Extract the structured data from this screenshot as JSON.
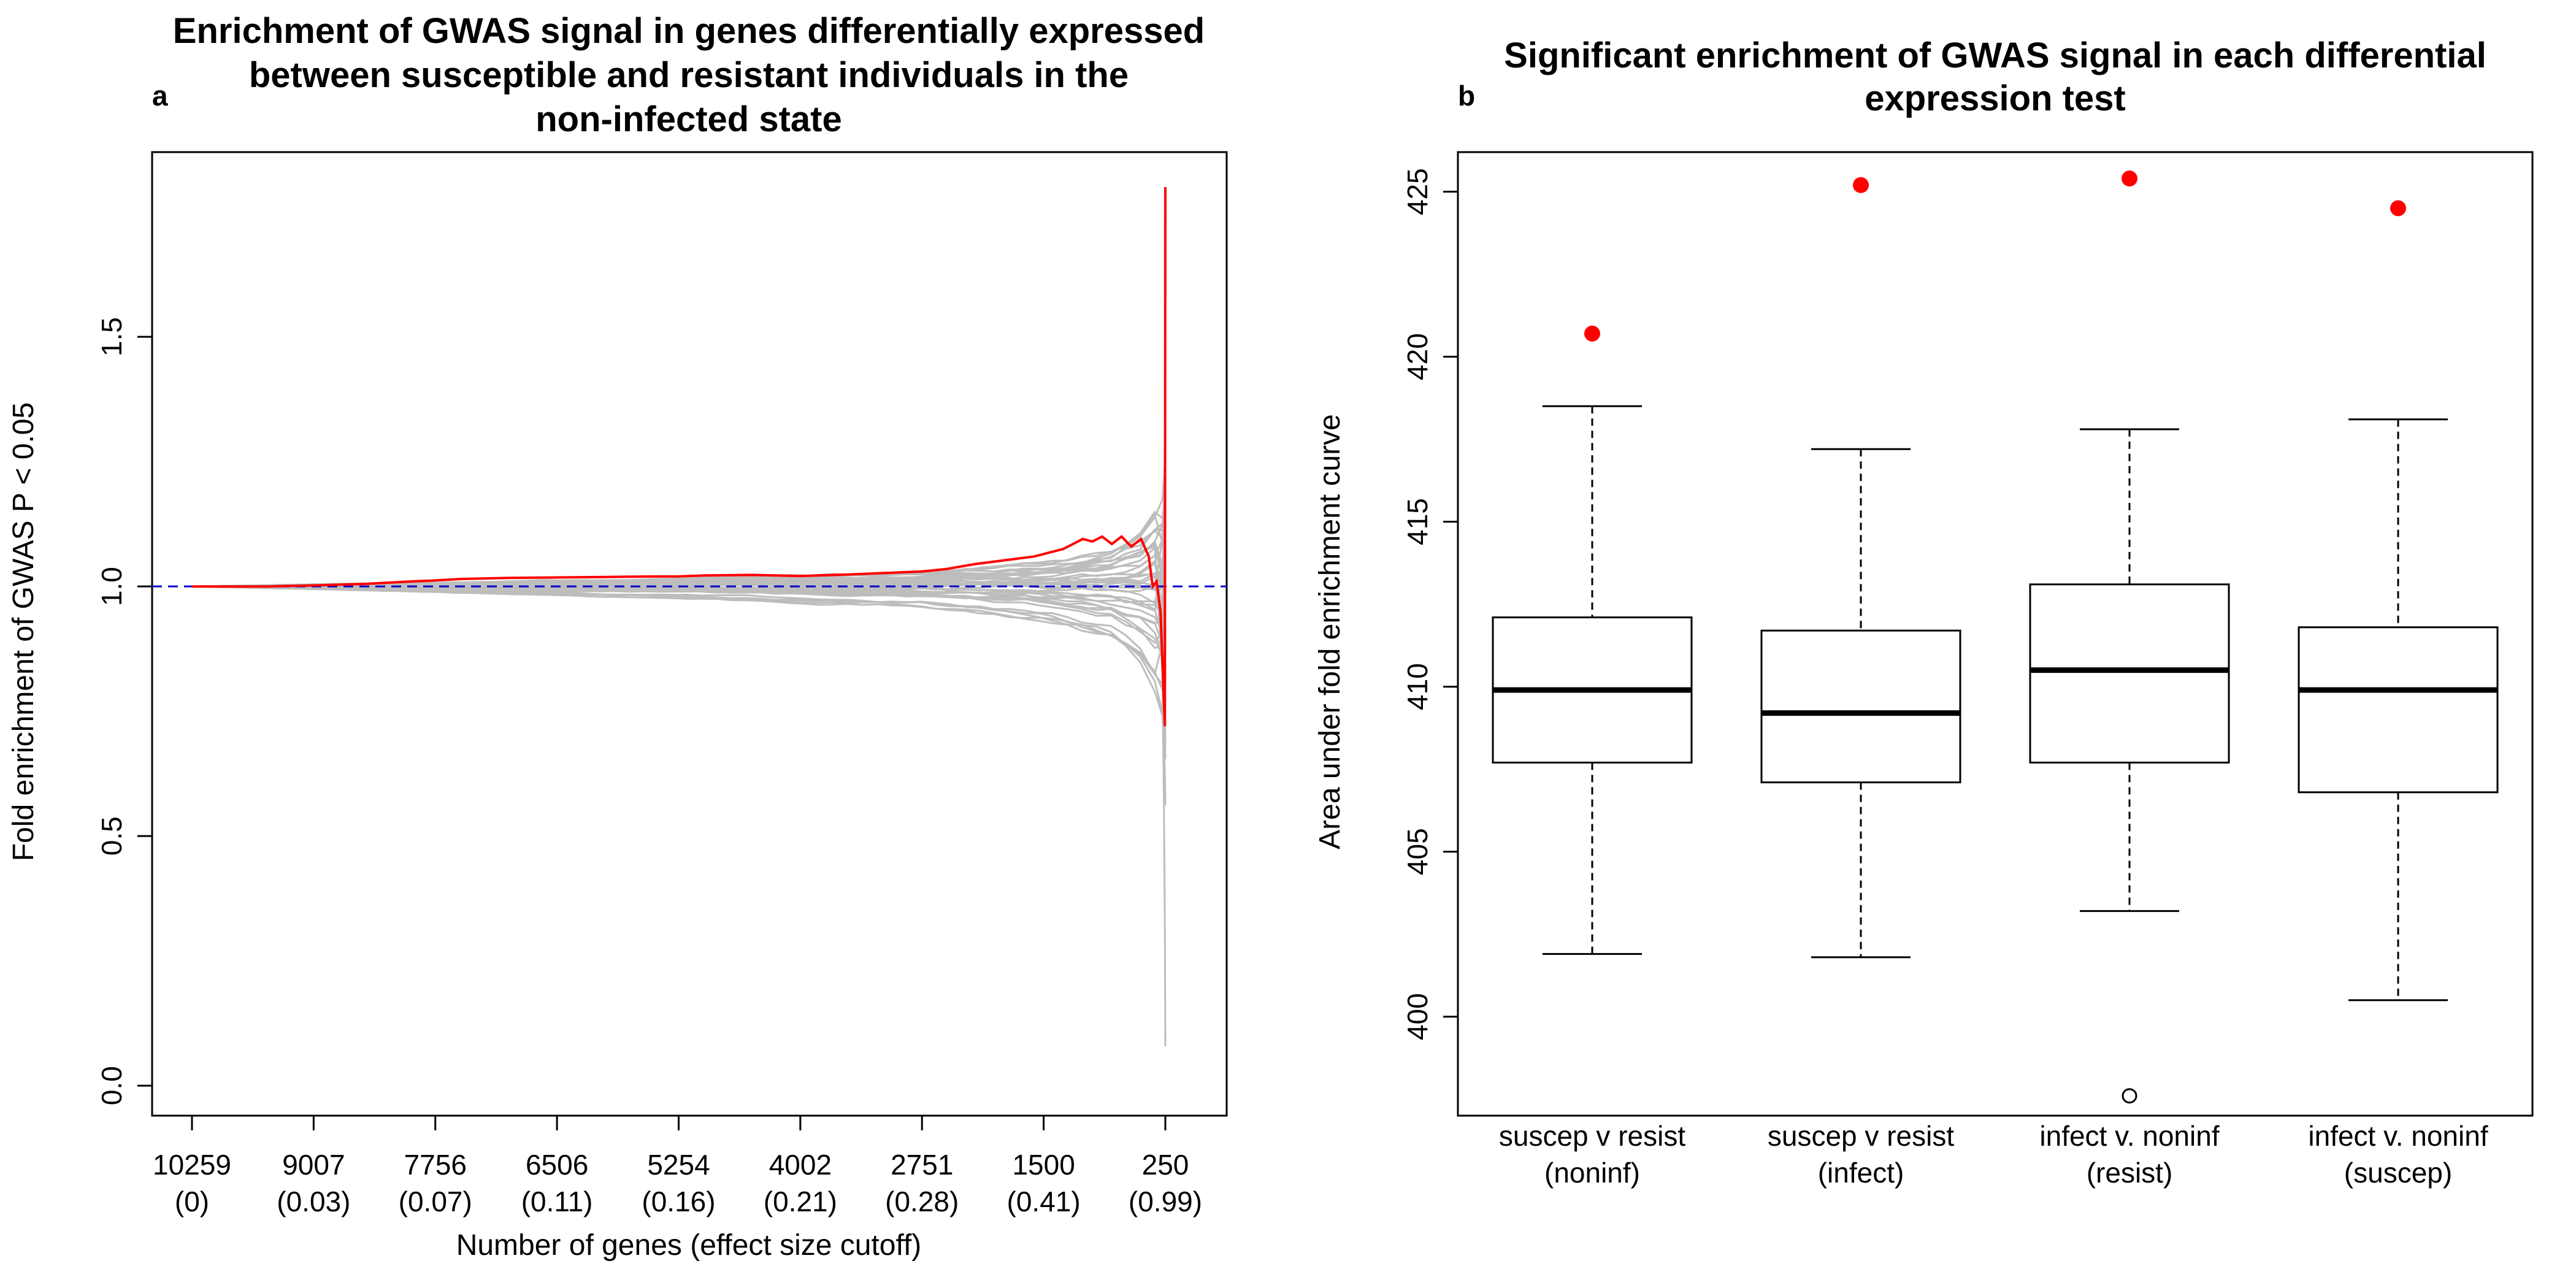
{
  "chart_data": [
    {
      "panel": "a",
      "type": "line",
      "title": [
        "Enrichment of GWAS signal in genes differentially expressed",
        "between susceptible and resistant individuals in the",
        "non-infected state"
      ],
      "xlabel": "Number of genes (effect size cutoff)",
      "ylabel": "Fold enrichment of GWAS P < 0.05",
      "ylim": [
        -0.06,
        1.87
      ],
      "y_ticks": [
        0.0,
        0.5,
        1.0,
        1.5
      ],
      "x_ticks": [
        {
          "genes": "10259",
          "cutoff": "(0)"
        },
        {
          "genes": "9007",
          "cutoff": "(0.03)"
        },
        {
          "genes": "7756",
          "cutoff": "(0.07)"
        },
        {
          "genes": "6506",
          "cutoff": "(0.11)"
        },
        {
          "genes": "5254",
          "cutoff": "(0.16)"
        },
        {
          "genes": "4002",
          "cutoff": "(0.21)"
        },
        {
          "genes": "2751",
          "cutoff": "(0.28)"
        },
        {
          "genes": "1500",
          "cutoff": "(0.41)"
        },
        {
          "genes": "250",
          "cutoff": "(0.99)"
        }
      ],
      "reference_line": {
        "y": 1.0,
        "style": "dashed",
        "color": "#0000cc"
      },
      "observed": {
        "color": "#ff0000",
        "points": [
          [
            10259,
            1.0
          ],
          [
            9500,
            1.0
          ],
          [
            9007,
            1.002
          ],
          [
            8500,
            1.005
          ],
          [
            8000,
            1.01
          ],
          [
            7756,
            1.012
          ],
          [
            7500,
            1.015
          ],
          [
            7000,
            1.017
          ],
          [
            6506,
            1.018
          ],
          [
            6000,
            1.019
          ],
          [
            5500,
            1.02
          ],
          [
            5254,
            1.02
          ],
          [
            5000,
            1.022
          ],
          [
            4500,
            1.023
          ],
          [
            4002,
            1.021
          ],
          [
            3500,
            1.024
          ],
          [
            3000,
            1.028
          ],
          [
            2751,
            1.03
          ],
          [
            2500,
            1.035
          ],
          [
            2200,
            1.045
          ],
          [
            2000,
            1.05
          ],
          [
            1800,
            1.055
          ],
          [
            1600,
            1.06
          ],
          [
            1500,
            1.065
          ],
          [
            1300,
            1.075
          ],
          [
            1200,
            1.085
          ],
          [
            1100,
            1.095
          ],
          [
            1000,
            1.09
          ],
          [
            900,
            1.1
          ],
          [
            800,
            1.085
          ],
          [
            700,
            1.1
          ],
          [
            600,
            1.08
          ],
          [
            500,
            1.095
          ],
          [
            420,
            1.06
          ],
          [
            380,
            1.0
          ],
          [
            340,
            1.01
          ],
          [
            300,
            0.95
          ],
          [
            270,
            0.8
          ],
          [
            255,
            0.72
          ],
          [
            250,
            1.8
          ]
        ]
      },
      "null_permutations": {
        "color": "#bdbdbd",
        "spread_at_genes": [
          [
            10259,
            0.0
          ],
          [
            7756,
            0.01
          ],
          [
            5254,
            0.02
          ],
          [
            2751,
            0.035
          ],
          [
            1500,
            0.06
          ],
          [
            800,
            0.09
          ],
          [
            400,
            0.15
          ],
          [
            300,
            0.22
          ]
        ],
        "extremes_near_250": {
          "max": 1.28,
          "min": 0.0
        }
      }
    },
    {
      "panel": "b",
      "type": "box",
      "title": [
        "Significant enrichment of GWAS signal in each differential",
        "expression test"
      ],
      "xlabel": "",
      "ylabel": "Area under fold enrichment curve",
      "ylim": [
        397,
        426.2
      ],
      "y_ticks": [
        400,
        405,
        410,
        415,
        420,
        425
      ],
      "categories": [
        [
          "suscep v resist",
          "(noninf)"
        ],
        [
          "suscep v resist",
          "(infect)"
        ],
        [
          "infect v. noninf",
          "(resist)"
        ],
        [
          "infect v. noninf",
          "(suscep)"
        ]
      ],
      "boxes": [
        {
          "whisker_low": 401.9,
          "q1": 407.7,
          "median": 409.9,
          "q3": 412.1,
          "whisker_high": 418.5,
          "outliers": [],
          "observed": 420.7
        },
        {
          "whisker_low": 401.8,
          "q1": 407.1,
          "median": 409.2,
          "q3": 411.7,
          "whisker_high": 417.2,
          "outliers": [],
          "observed": 425.2
        },
        {
          "whisker_low": 403.2,
          "q1": 407.7,
          "median": 410.5,
          "q3": 413.1,
          "whisker_high": 417.8,
          "outliers": [
            397.6
          ],
          "observed": 425.4
        },
        {
          "whisker_low": 400.5,
          "q1": 406.8,
          "median": 409.9,
          "q3": 411.8,
          "whisker_high": 418.1,
          "outliers": [],
          "observed": 424.5
        }
      ],
      "observed_color": "#ff0000"
    }
  ]
}
